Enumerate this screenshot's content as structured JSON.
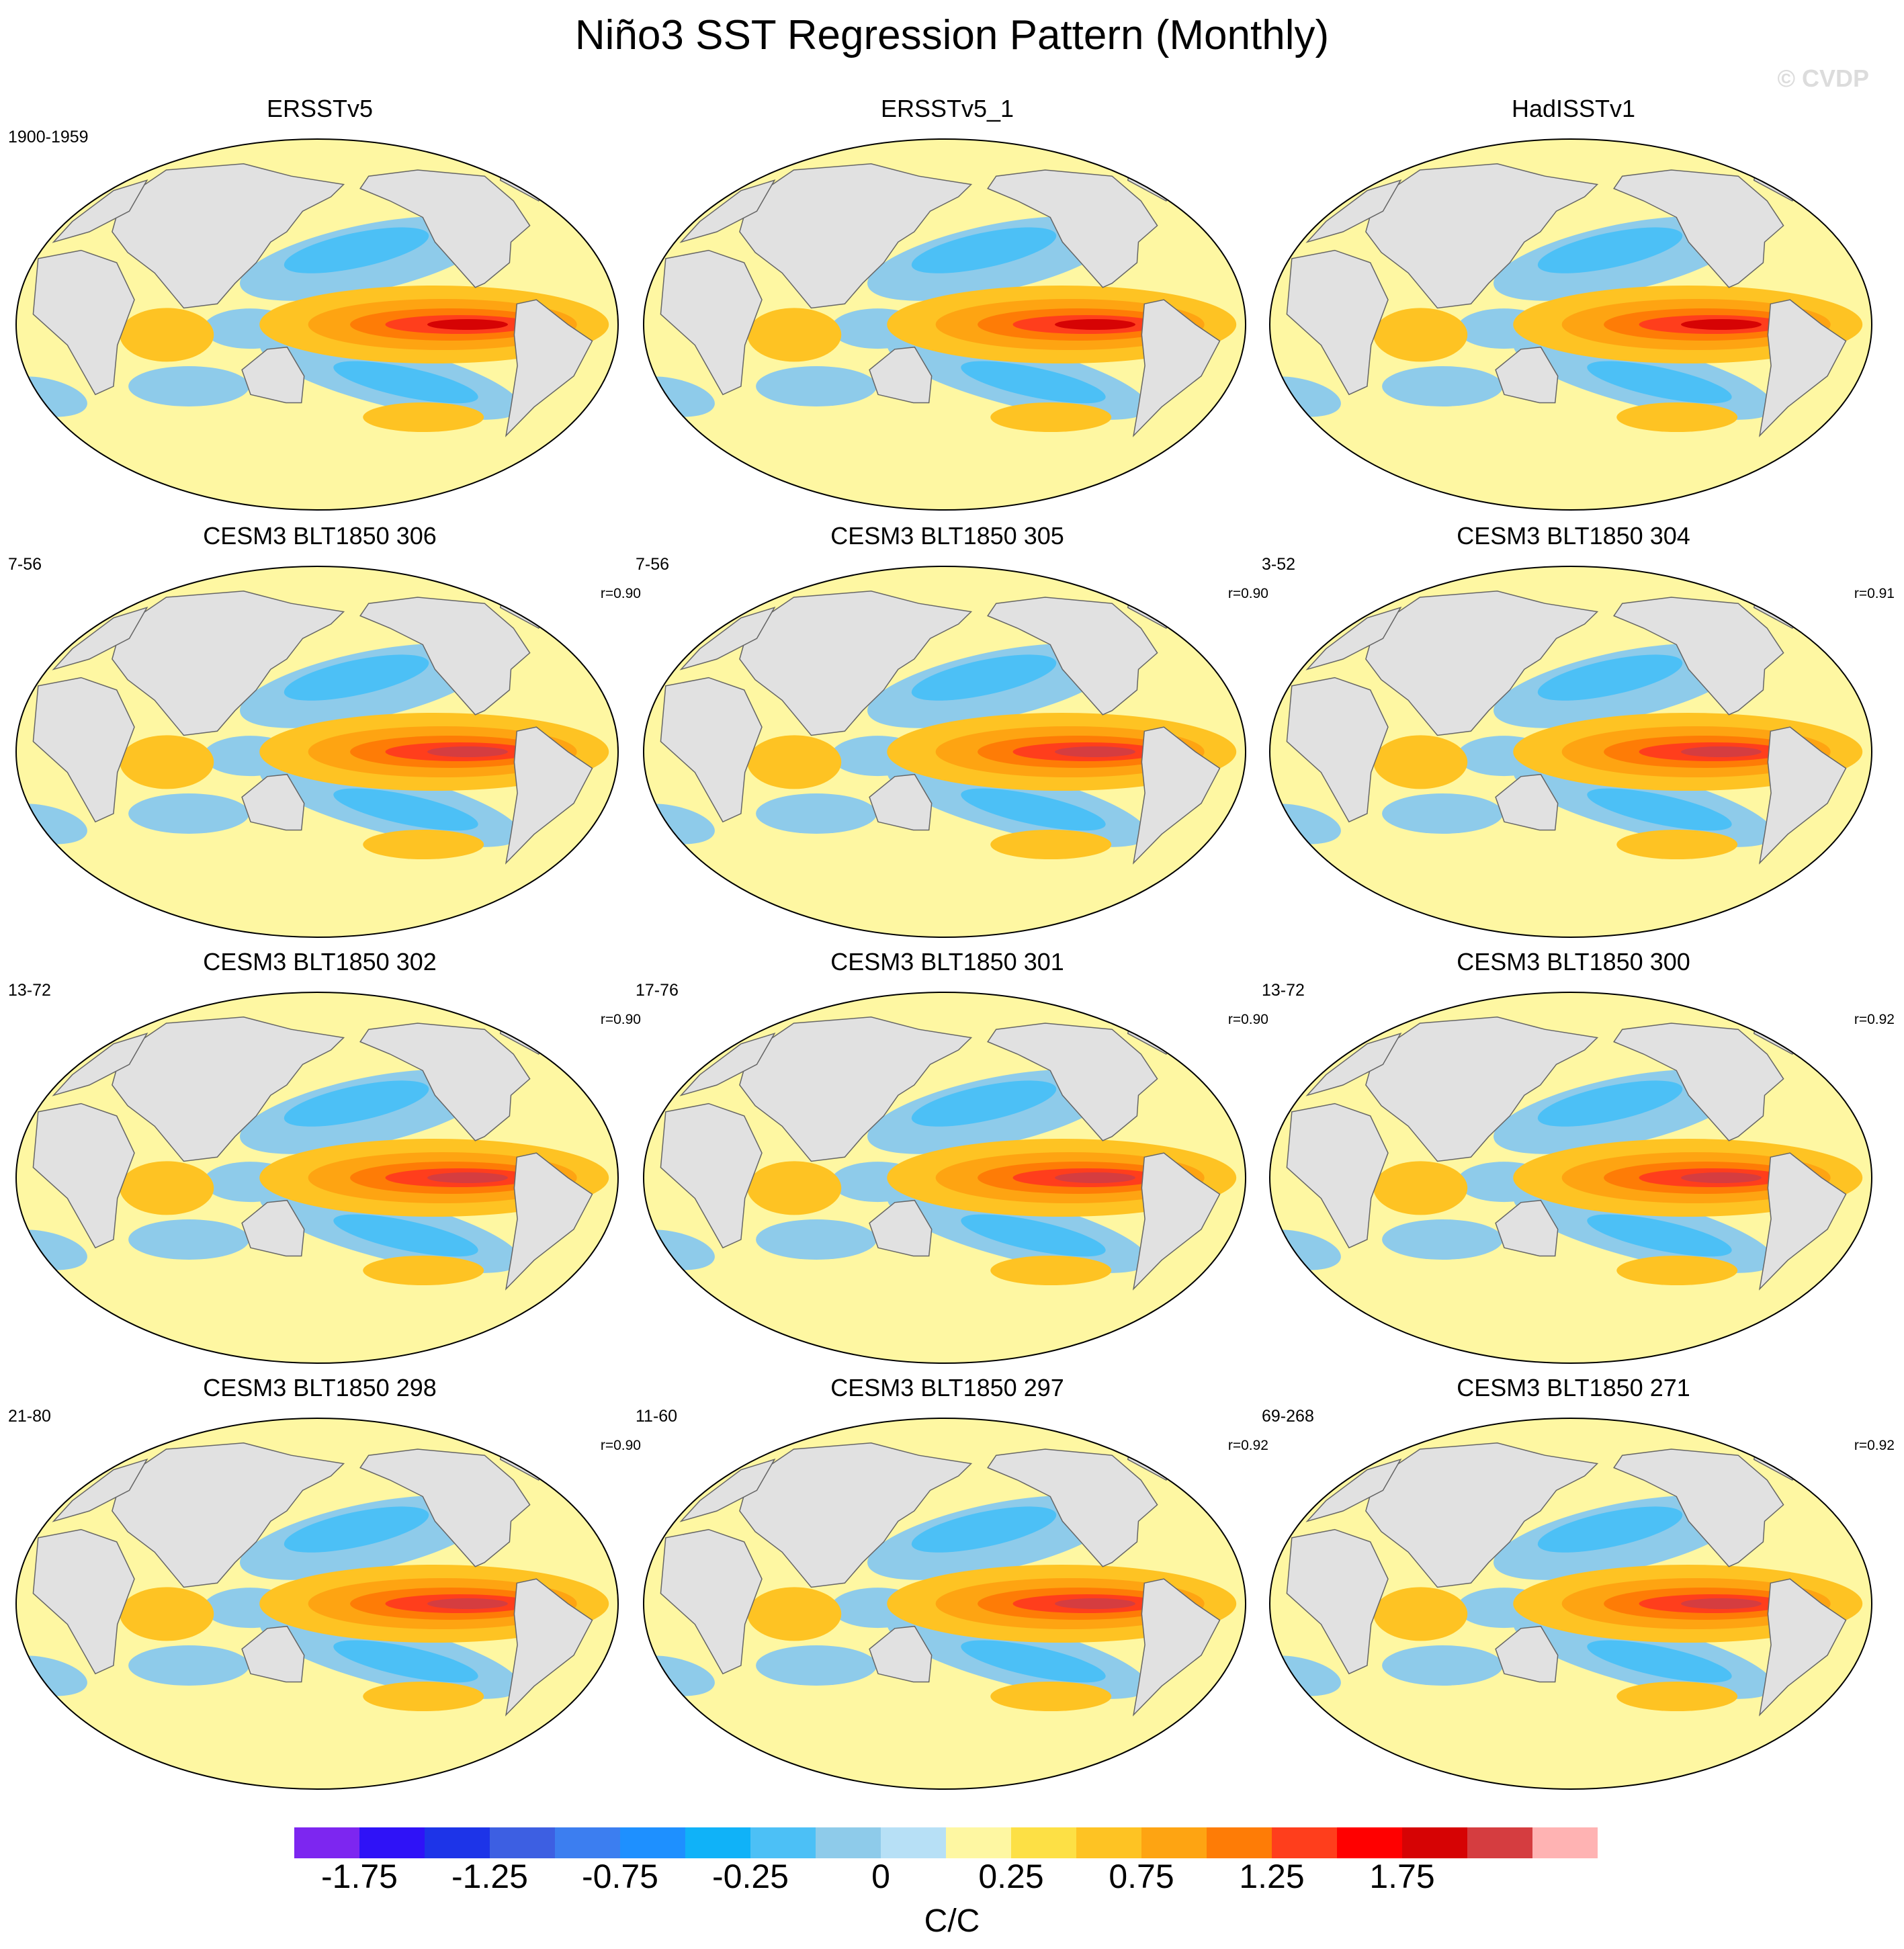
{
  "title": "Niño3 SST Regression Pattern (Monthly)",
  "watermark": "© CVDP",
  "colorbar": {
    "units": "C/C",
    "colors": [
      "#7d26f0",
      "#2f12f7",
      "#1d34e8",
      "#3d5fe2",
      "#3c7ef0",
      "#1e90ff",
      "#10b2f8",
      "#4cc0f6",
      "#8ecbea",
      "#b7e0f6",
      "#fef7a2",
      "#fde045",
      "#fec323",
      "#fea412",
      "#fe7c06",
      "#ff3e1c",
      "#ff0000",
      "#d60304",
      "#d53d40",
      "#ffb3b3"
    ],
    "tick_labels": [
      "-1.75",
      "-1.25",
      "-0.75",
      "-0.25",
      "0",
      "0.25",
      "0.75",
      "1.25",
      "1.75"
    ],
    "tick_boundary_index": [
      1,
      3,
      5,
      7,
      9,
      11,
      13,
      15,
      17
    ]
  },
  "colors": {
    "land": "#e1e1e1",
    "coast": "#666666",
    "ocean_base": "#fef7a2"
  },
  "chart_data": {
    "type": "heatmap",
    "variable": "SST regressed onto Niño3 index (monthly)",
    "levels": [
      -2.0,
      -1.75,
      -1.5,
      -1.25,
      -1.0,
      -0.75,
      -0.5,
      -0.25,
      -0.1,
      0,
      0.1,
      0.25,
      0.5,
      0.75,
      1.0,
      1.25,
      1.5,
      1.75,
      2.0
    ],
    "panels": [
      {
        "title": "ERSSTv5",
        "years": "1900-1959",
        "r": "",
        "peak": 1.5,
        "neg": -0.4
      },
      {
        "title": "ERSSTv5_1",
        "years": "",
        "r": "",
        "peak": 1.5,
        "neg": -0.45
      },
      {
        "title": "HadISSTv1",
        "years": "",
        "r": "",
        "peak": 1.5,
        "neg": -0.4
      },
      {
        "title": "CESM3 BLT1850 306",
        "years": "7-56",
        "r": "r=0.90",
        "peak": 1.75,
        "neg": -0.45
      },
      {
        "title": "CESM3 BLT1850 305",
        "years": "7-56",
        "r": "r=0.90",
        "peak": 1.75,
        "neg": -0.45
      },
      {
        "title": "CESM3 BLT1850 304",
        "years": "3-52",
        "r": "r=0.91",
        "peak": 1.75,
        "neg": -0.45
      },
      {
        "title": "CESM3 BLT1850 302",
        "years": "13-72",
        "r": "r=0.90",
        "peak": 1.75,
        "neg": -0.45
      },
      {
        "title": "CESM3 BLT1850 301",
        "years": "17-76",
        "r": "r=0.90",
        "peak": 1.75,
        "neg": -0.45
      },
      {
        "title": "CESM3 BLT1850 300",
        "years": "13-72",
        "r": "r=0.92",
        "peak": 1.75,
        "neg": -0.45
      },
      {
        "title": "CESM3 BLT1850 298",
        "years": "21-80",
        "r": "r=0.90",
        "peak": 1.75,
        "neg": -0.45
      },
      {
        "title": "CESM3 BLT1850 297",
        "years": "11-60",
        "r": "r=0.92",
        "peak": 1.75,
        "neg": -0.4
      },
      {
        "title": "CESM3 BLT1850 271",
        "years": "69-268",
        "r": "r=0.92",
        "peak": 1.75,
        "neg": -0.4
      }
    ]
  }
}
